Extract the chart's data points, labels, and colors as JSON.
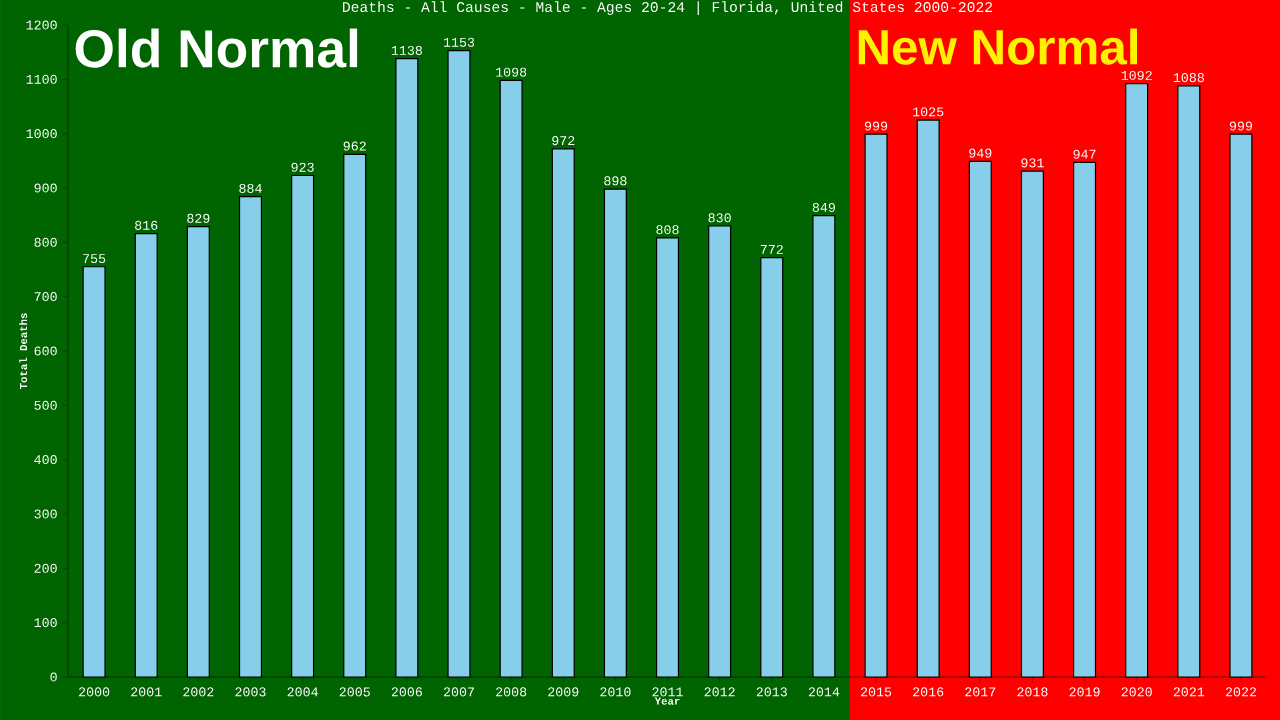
{
  "chart_data": {
    "type": "bar",
    "title": "Deaths - All Causes - Male - Ages 20-24 | Florida, United States 2000-2022",
    "xlabel": "Year",
    "ylabel": "Total Deaths",
    "categories": [
      "2000",
      "2001",
      "2002",
      "2003",
      "2004",
      "2005",
      "2006",
      "2007",
      "2008",
      "2009",
      "2010",
      "2011",
      "2012",
      "2013",
      "2014",
      "2015",
      "2016",
      "2017",
      "2018",
      "2019",
      "2020",
      "2021",
      "2022"
    ],
    "values": [
      755,
      816,
      829,
      884,
      923,
      962,
      1138,
      1153,
      1098,
      972,
      898,
      808,
      830,
      772,
      849,
      999,
      1025,
      949,
      931,
      947,
      1092,
      1088,
      999
    ],
    "color": "#87ceeb",
    "data_labels": true,
    "ylim": [
      0,
      1200
    ],
    "yticks": [
      0,
      100,
      200,
      300,
      400,
      500,
      600,
      700,
      800,
      900,
      1000,
      1100,
      1200
    ],
    "bands": [
      {
        "axis": "x",
        "from": "2000",
        "to": "2014",
        "label": "Old Normal",
        "color": "#006400"
      },
      {
        "axis": "x",
        "from": "2015",
        "to": "2022",
        "label": "New Normal",
        "color": "#ff0000"
      }
    ]
  }
}
